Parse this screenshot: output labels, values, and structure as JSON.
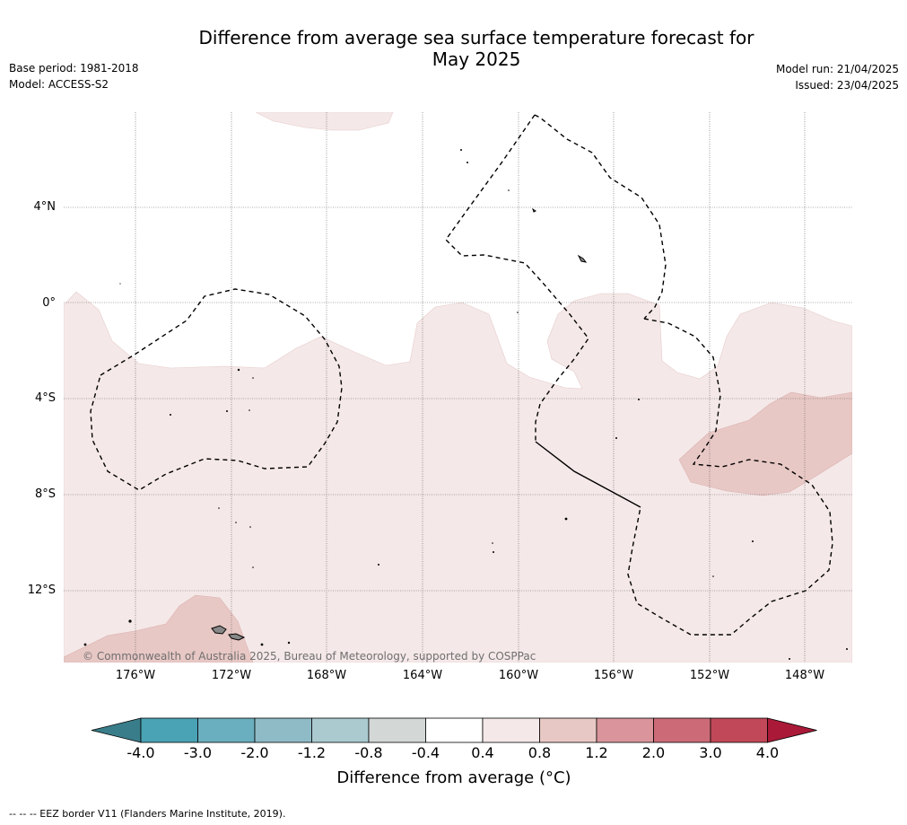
{
  "header": {
    "title_line1": "Difference from average sea surface temperature forecast for",
    "title_line2": "May 2025",
    "base_period": "Base period: 1981-2018",
    "model": "Model: ACCESS-S2",
    "model_run": "Model run: 21/04/2025",
    "issued": "Issued: 23/04/2025"
  },
  "map": {
    "lat_labels": [
      "4°N",
      "0°",
      "4°S",
      "8°S",
      "12°S"
    ],
    "lon_labels": [
      "176°W",
      "172°W",
      "168°W",
      "164°W",
      "160°W",
      "156°W",
      "152°W",
      "148°W"
    ],
    "copyright": "© Commonwealth of Australia 2025, Bureau of Meteorology, supported by COSPPac",
    "colors": {
      "anomaly_0_4_to_0_8": "#f5e8e8",
      "anomaly_0_8_to_1_2": "#e8c8c5",
      "land": "#888888",
      "eez_border": "#000000",
      "gridline": "#555555"
    }
  },
  "colorbar": {
    "ticks": [
      "-4.0",
      "-3.0",
      "-2.0",
      "-1.2",
      "-0.8",
      "-0.4",
      "0.4",
      "0.8",
      "1.2",
      "2.0",
      "3.0",
      "4.0"
    ],
    "colors": [
      "#3a7d8a",
      "#4aa3b5",
      "#6aafbf",
      "#8fbbc6",
      "#aacad0",
      "#d3d8d7",
      "#ffffff",
      "#f5e8e8",
      "#e8c8c5",
      "#d9959b",
      "#cc6b77",
      "#c04858",
      "#aa1a38"
    ],
    "label": "Difference from average (",
    "label_unit": "°C)"
  },
  "footer": {
    "legend_text": "--  --  -- EEZ border V11 (Flanders Marine Institute, 2019)."
  }
}
